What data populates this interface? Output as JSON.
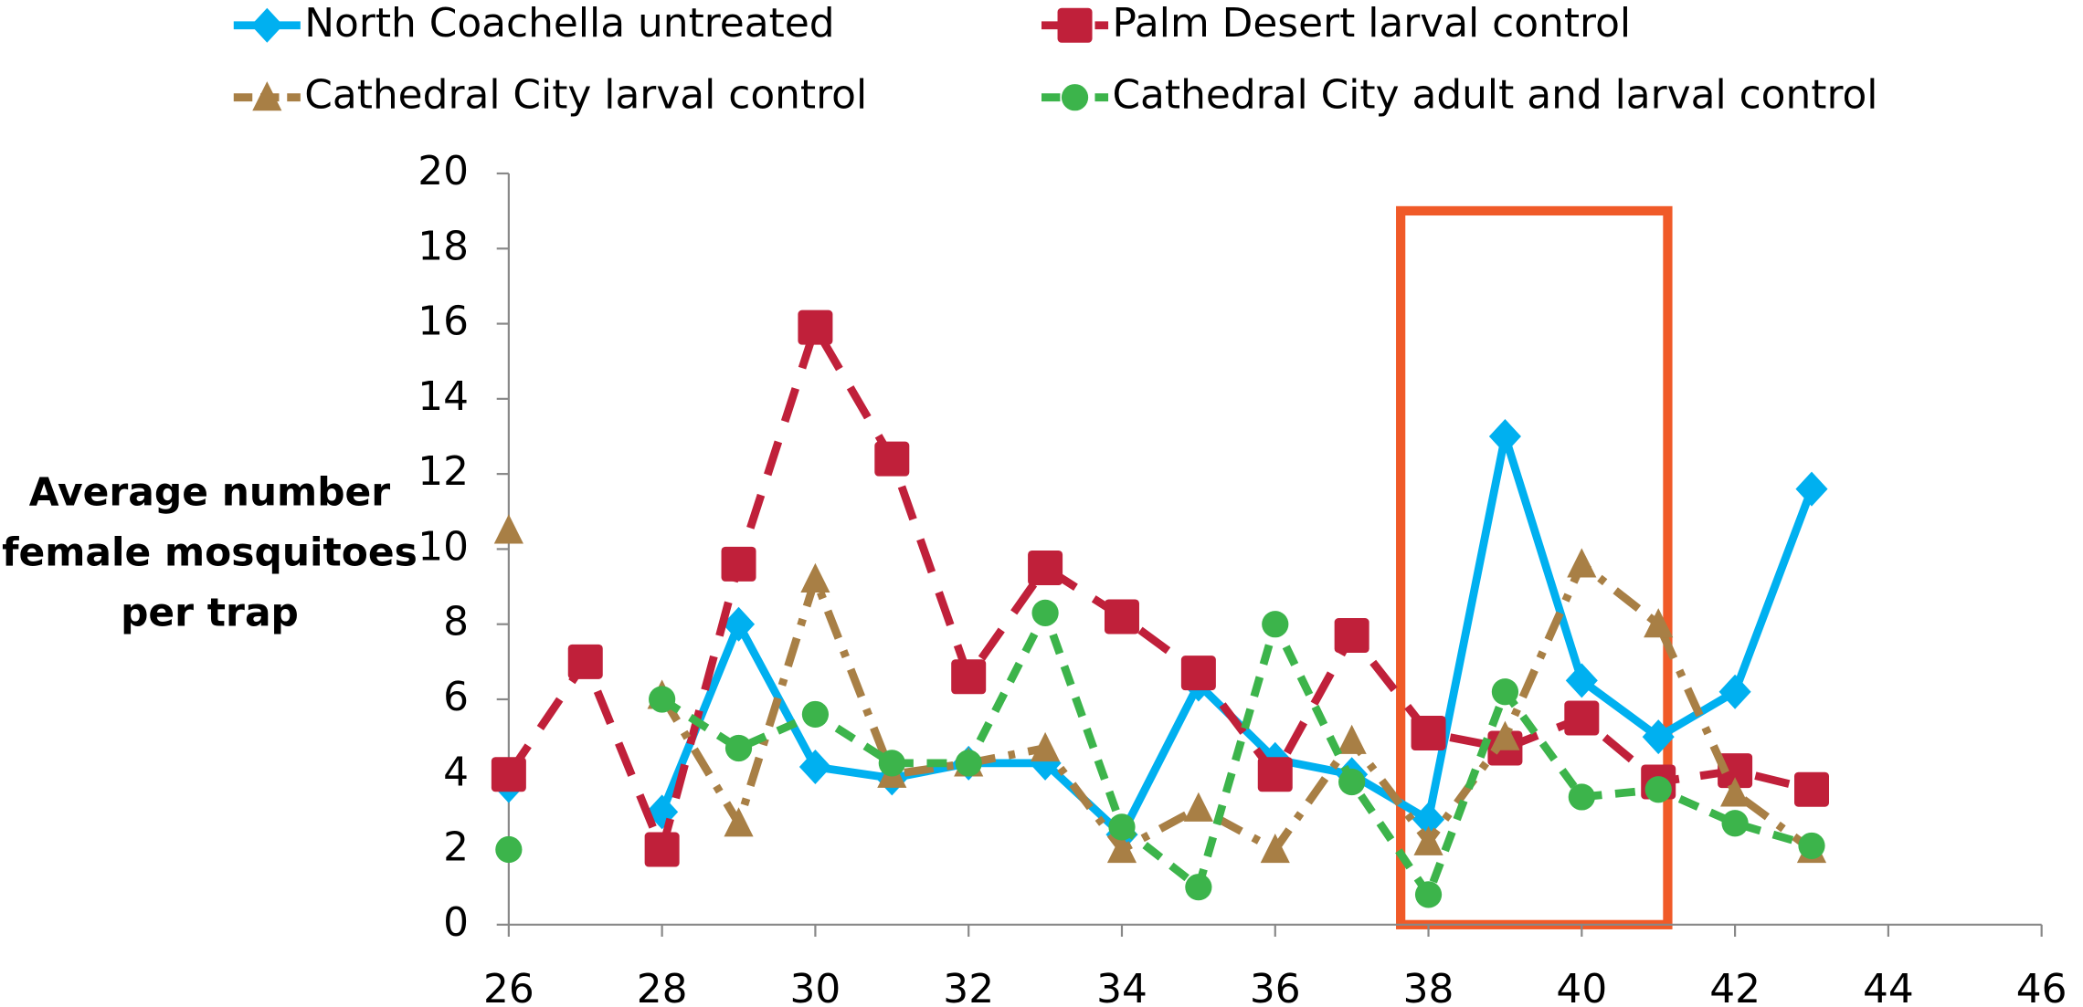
{
  "chart_data": {
    "type": "line",
    "ylabel": [
      "Average number",
      "female mosquitoes",
      "per trap"
    ],
    "x": [
      26,
      27,
      28,
      29,
      30,
      31,
      32,
      33,
      34,
      35,
      36,
      37,
      38,
      39,
      40,
      41,
      42,
      43
    ],
    "xlim": [
      26,
      46
    ],
    "xticks": [
      26,
      28,
      30,
      32,
      34,
      36,
      38,
      40,
      42,
      44,
      46
    ],
    "ylim": [
      0,
      20
    ],
    "yticks": [
      0,
      2,
      4,
      6,
      8,
      10,
      12,
      14,
      16,
      18,
      20
    ],
    "series": [
      {
        "name": "North Coachella untreated",
        "color": "#00b0f0",
        "marker": "diamond",
        "dash": "solid",
        "values": [
          3.7,
          null,
          3.0,
          8.0,
          4.2,
          3.9,
          4.3,
          4.3,
          2.4,
          6.4,
          4.4,
          4.0,
          2.8,
          13.0,
          6.5,
          5.0,
          6.2,
          11.6
        ]
      },
      {
        "name": "Palm Desert larval control",
        "color": "#c0203a",
        "marker": "square",
        "dash": "dash",
        "values": [
          4.0,
          7.0,
          2.0,
          9.6,
          15.9,
          12.4,
          6.6,
          9.5,
          8.2,
          6.7,
          4.0,
          7.7,
          5.1,
          4.7,
          5.5,
          3.8,
          4.1,
          3.6
        ]
      },
      {
        "name": "Cathedral City larval control",
        "color": "#a87f45",
        "marker": "triangle",
        "dash": "dashdot",
        "values": [
          10.5,
          null,
          6.1,
          2.7,
          9.2,
          4.0,
          4.3,
          4.7,
          2.0,
          3.1,
          2.0,
          4.9,
          2.2,
          5.0,
          9.6,
          8.0,
          3.5,
          2.0
        ]
      },
      {
        "name": "Cathedral City adult and larval control",
        "color": "#3cb44b",
        "marker": "circle",
        "dash": "shortdash",
        "values": [
          2.0,
          null,
          6.0,
          4.7,
          5.6,
          4.3,
          4.3,
          8.3,
          2.6,
          1.0,
          8.0,
          3.8,
          0.8,
          6.2,
          3.4,
          3.6,
          2.7,
          2.1
        ]
      }
    ]
  }
}
